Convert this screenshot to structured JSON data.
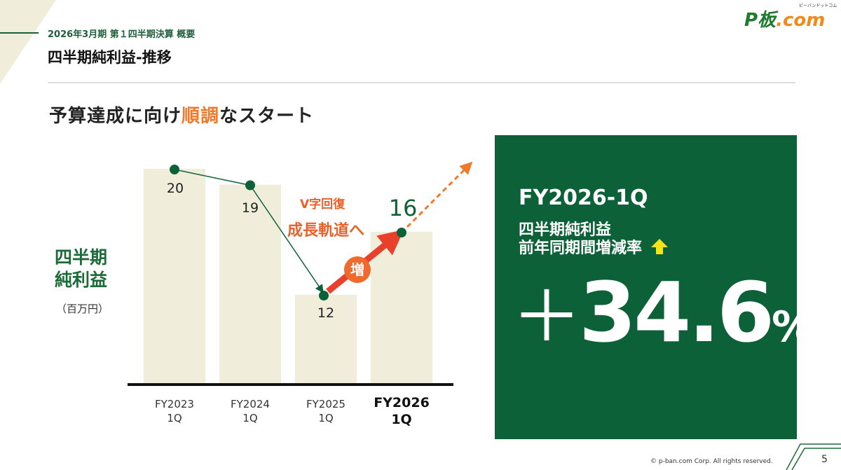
{
  "header": {
    "subtitle": "2026年3月期 第１四半期決算 概要",
    "title": "四半期純利益-推移",
    "logo_text": "P板",
    "logo_suffix": ".com",
    "logo_kana": "ピーバンドットコム"
  },
  "headline": {
    "before": "予算達成に向け",
    "accent": "順調",
    "after": "なスタート"
  },
  "colors": {
    "green": "#0d6138",
    "orange": "#ef7a2c",
    "bar": "#f0eedb",
    "arrow_red": "#e8402a",
    "yellow": "#f5e31a"
  },
  "chart_data": {
    "type": "bar",
    "ylabel_line1": "四半期",
    "ylabel_line2": "純利益",
    "yunit": "（百万円）",
    "categories": [
      [
        "FY2023",
        "1Q"
      ],
      [
        "FY2024",
        "1Q"
      ],
      [
        "FY2025",
        "1Q"
      ],
      [
        "FY2026",
        "1Q"
      ]
    ],
    "values": [
      20,
      19,
      12,
      16
    ],
    "value_labels": [
      "20",
      "19",
      "12",
      "16"
    ],
    "highlight_index": 3,
    "annotations": {
      "line1": "V字回復",
      "line2": "成長軌道へ",
      "badge": "増"
    }
  },
  "kpi": {
    "period": "FY2026-1Q",
    "metric": "四半期純利益",
    "label": "前年同期間増減率",
    "direction": "up",
    "sign": "＋",
    "value": "34.6",
    "unit": "%"
  },
  "footer": {
    "copyright": "©  p-ban.com Corp. All rights reserved.",
    "page": "5"
  }
}
